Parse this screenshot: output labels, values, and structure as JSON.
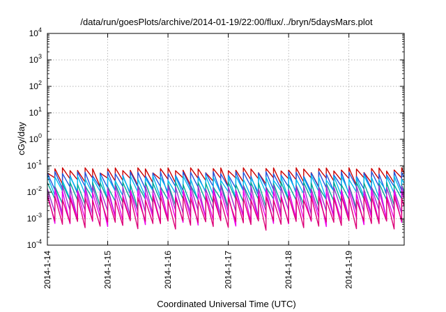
{
  "chart_data": {
    "type": "line",
    "title": "/data/run/goesPlots/archive/2014-01-19/22:00/flux/../bryn/5daysMars.plot",
    "xlabel": "Coordinated Universal Time (UTC)",
    "ylabel": "cGy/day",
    "y_scale": "log",
    "ylim": [
      0.0001,
      10000
    ],
    "xlim": [
      "2014-01-14T00:00",
      "2014-01-19T22:00"
    ],
    "x_ticks": [
      "2014-1-14",
      "2014-1-15",
      "2014-1-16",
      "2014-1-17",
      "2014-1-18",
      "2014-1-19"
    ],
    "y_ticks": [
      {
        "base": "10",
        "exp": "-4",
        "value": 0.0001
      },
      {
        "base": "10",
        "exp": "-3",
        "value": 0.001
      },
      {
        "base": "10",
        "exp": "-2",
        "value": 0.01
      },
      {
        "base": "10",
        "exp": "-1",
        "value": 0.1
      },
      {
        "base": "10",
        "exp": "0",
        "value": 1
      },
      {
        "base": "10",
        "exp": "1",
        "value": 10
      },
      {
        "base": "10",
        "exp": "2",
        "value": 100
      },
      {
        "base": "10",
        "exp": "3",
        "value": 1000
      },
      {
        "base": "10",
        "exp": "4",
        "value": 10000
      }
    ],
    "grid": true,
    "legend": "none",
    "sawtooth_period_hours": 3,
    "series": [
      {
        "color": "#cc0000",
        "peak": 0.07,
        "trough": 0.025
      },
      {
        "color": "#2255dd",
        "peak": 0.05,
        "trough": 0.012
      },
      {
        "color": "#00bbee",
        "peak": 0.035,
        "trough": 0.008
      },
      {
        "color": "#00a896",
        "peak": 0.02,
        "trough": 0.004
      },
      {
        "color": "#9933cc",
        "peak": 0.015,
        "trough": 0.0015
      },
      {
        "color": "#ee00ee",
        "peak": 0.01,
        "trough": 0.0008
      },
      {
        "color": "#dd0077",
        "peak": 0.006,
        "trough": 0.0006
      }
    ]
  }
}
